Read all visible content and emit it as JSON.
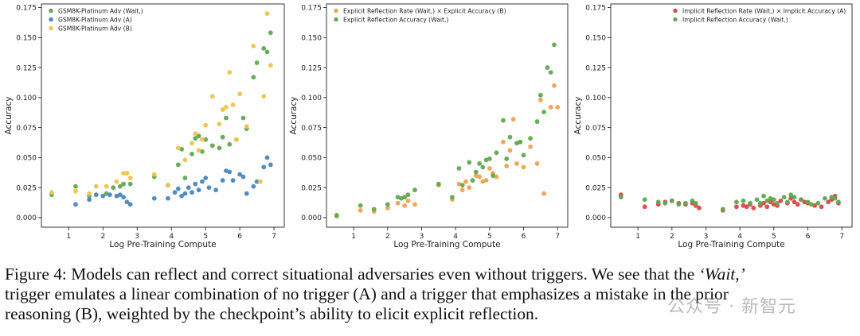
{
  "chart_data": [
    {
      "type": "scatter",
      "xlabel": "Log Pre-Training Compute",
      "ylabel": "Accuracy",
      "xlim": [
        0.2,
        7.3
      ],
      "ylim": [
        -0.008,
        0.178
      ],
      "xticks": [
        1,
        2,
        3,
        4,
        5,
        6,
        7
      ],
      "yticks": [
        0.0,
        0.025,
        0.05,
        0.075,
        0.1,
        0.125,
        0.15,
        0.175
      ],
      "legend_position": "top-left",
      "series": [
        {
          "name": "GSM8K-Platinum Adv (Wait,)",
          "color": "#5fa84f",
          "points": [
            [
              0.5,
              0.019
            ],
            [
              1.2,
              0.026
            ],
            [
              1.6,
              0.018
            ],
            [
              2.1,
              0.02
            ],
            [
              2.3,
              0.025
            ],
            [
              2.5,
              0.026
            ],
            [
              2.6,
              0.028
            ],
            [
              2.8,
              0.028
            ],
            [
              3.5,
              0.034
            ],
            [
              3.9,
              0.027
            ],
            [
              4.2,
              0.044
            ],
            [
              4.3,
              0.057
            ],
            [
              4.4,
              0.033
            ],
            [
              4.6,
              0.053
            ],
            [
              4.7,
              0.066
            ],
            [
              4.8,
              0.068
            ],
            [
              4.9,
              0.055
            ],
            [
              5.0,
              0.065
            ],
            [
              5.2,
              0.06
            ],
            [
              5.4,
              0.058
            ],
            [
              5.5,
              0.067
            ],
            [
              5.6,
              0.083
            ],
            [
              5.7,
              0.061
            ],
            [
              5.9,
              0.065
            ],
            [
              6.1,
              0.083
            ],
            [
              6.2,
              0.074
            ],
            [
              6.4,
              0.117
            ],
            [
              6.5,
              0.129
            ],
            [
              6.7,
              0.141
            ],
            [
              6.8,
              0.138
            ],
            [
              6.9,
              0.154
            ]
          ]
        },
        {
          "name": "GSM8K-Platinum Adv (A)",
          "color": "#4a86c0",
          "points": [
            [
              1.2,
              0.011
            ],
            [
              1.6,
              0.015
            ],
            [
              1.8,
              0.019
            ],
            [
              2.0,
              0.018
            ],
            [
              2.2,
              0.019
            ],
            [
              2.4,
              0.018
            ],
            [
              2.5,
              0.019
            ],
            [
              2.6,
              0.017
            ],
            [
              2.7,
              0.013
            ],
            [
              2.8,
              0.011
            ],
            [
              3.5,
              0.016
            ],
            [
              3.9,
              0.016
            ],
            [
              4.1,
              0.021
            ],
            [
              4.2,
              0.024
            ],
            [
              4.3,
              0.018
            ],
            [
              4.4,
              0.02
            ],
            [
              4.5,
              0.025
            ],
            [
              4.6,
              0.021
            ],
            [
              4.7,
              0.028
            ],
            [
              4.8,
              0.023
            ],
            [
              4.9,
              0.03
            ],
            [
              5.0,
              0.033
            ],
            [
              5.1,
              0.025
            ],
            [
              5.3,
              0.023
            ],
            [
              5.5,
              0.031
            ],
            [
              5.6,
              0.039
            ],
            [
              5.7,
              0.038
            ],
            [
              5.8,
              0.031
            ],
            [
              6.0,
              0.036
            ],
            [
              6.1,
              0.034
            ],
            [
              6.2,
              0.02
            ],
            [
              6.4,
              0.026
            ],
            [
              6.5,
              0.03
            ],
            [
              6.7,
              0.042
            ],
            [
              6.8,
              0.05
            ],
            [
              6.9,
              0.044
            ]
          ]
        },
        {
          "name": "GSM8K-Platinum Adv (B)",
          "color": "#f0c24a",
          "points": [
            [
              0.5,
              0.021
            ],
            [
              1.2,
              0.022
            ],
            [
              1.6,
              0.02
            ],
            [
              1.8,
              0.026
            ],
            [
              2.1,
              0.026
            ],
            [
              2.4,
              0.03
            ],
            [
              2.6,
              0.037
            ],
            [
              2.7,
              0.037
            ],
            [
              2.8,
              0.033
            ],
            [
              3.5,
              0.036
            ],
            [
              3.9,
              0.027
            ],
            [
              4.2,
              0.058
            ],
            [
              4.4,
              0.048
            ],
            [
              4.6,
              0.062
            ],
            [
              4.7,
              0.07
            ],
            [
              4.8,
              0.056
            ],
            [
              4.9,
              0.065
            ],
            [
              5.0,
              0.077
            ],
            [
              5.2,
              0.101
            ],
            [
              5.4,
              0.078
            ],
            [
              5.5,
              0.09
            ],
            [
              5.6,
              0.092
            ],
            [
              5.7,
              0.121
            ],
            [
              5.8,
              0.094
            ],
            [
              5.9,
              0.065
            ],
            [
              6.0,
              0.103
            ],
            [
              6.2,
              0.076
            ],
            [
              6.4,
              0.143
            ],
            [
              6.6,
              0.03
            ],
            [
              6.7,
              0.101
            ],
            [
              6.8,
              0.17
            ],
            [
              6.9,
              0.127
            ]
          ]
        }
      ]
    },
    {
      "type": "scatter",
      "xlabel": "Log Pre-Training Compute",
      "ylabel": "Accuracy",
      "xlim": [
        0.2,
        7.3
      ],
      "ylim": [
        -0.008,
        0.178
      ],
      "xticks": [
        1,
        2,
        3,
        4,
        5,
        6,
        7
      ],
      "yticks": [
        0.0,
        0.025,
        0.05,
        0.075,
        0.1,
        0.125,
        0.15,
        0.175
      ],
      "legend_position": "top-left",
      "series": [
        {
          "name": "Explicit Reflection Rate (Wait,) × Explicit Accuracy (B)",
          "color": "#f0a14f",
          "points": [
            [
              0.5,
              0.001
            ],
            [
              1.2,
              0.006
            ],
            [
              1.6,
              0.005
            ],
            [
              2.0,
              0.008
            ],
            [
              2.3,
              0.012
            ],
            [
              2.5,
              0.01
            ],
            [
              2.6,
              0.014
            ],
            [
              2.8,
              0.011
            ],
            [
              3.5,
              0.027
            ],
            [
              3.9,
              0.015
            ],
            [
              4.1,
              0.028
            ],
            [
              4.2,
              0.023
            ],
            [
              4.3,
              0.03
            ],
            [
              4.4,
              0.025
            ],
            [
              4.6,
              0.035
            ],
            [
              4.7,
              0.034
            ],
            [
              4.8,
              0.03
            ],
            [
              4.9,
              0.031
            ],
            [
              5.0,
              0.041
            ],
            [
              5.1,
              0.037
            ],
            [
              5.2,
              0.034
            ],
            [
              5.4,
              0.063
            ],
            [
              5.5,
              0.043
            ],
            [
              5.6,
              0.056
            ],
            [
              5.7,
              0.082
            ],
            [
              5.8,
              0.045
            ],
            [
              5.9,
              0.063
            ],
            [
              6.0,
              0.042
            ],
            [
              6.2,
              0.059
            ],
            [
              6.4,
              0.045
            ],
            [
              6.5,
              0.098
            ],
            [
              6.6,
              0.02
            ],
            [
              6.8,
              0.092
            ],
            [
              6.9,
              0.11
            ],
            [
              7.0,
              0.092
            ]
          ]
        },
        {
          "name": "Explicit Reflection Accuracy (Wait,)",
          "color": "#5fa84f",
          "points": [
            [
              0.5,
              0.002
            ],
            [
              1.2,
              0.01
            ],
            [
              1.6,
              0.007
            ],
            [
              2.0,
              0.011
            ],
            [
              2.3,
              0.017
            ],
            [
              2.4,
              0.016
            ],
            [
              2.5,
              0.017
            ],
            [
              2.6,
              0.019
            ],
            [
              2.8,
              0.023
            ],
            [
              3.5,
              0.028
            ],
            [
              3.9,
              0.017
            ],
            [
              4.1,
              0.041
            ],
            [
              4.2,
              0.027
            ],
            [
              4.4,
              0.046
            ],
            [
              4.5,
              0.031
            ],
            [
              4.6,
              0.038
            ],
            [
              4.7,
              0.045
            ],
            [
              4.8,
              0.042
            ],
            [
              4.9,
              0.048
            ],
            [
              5.0,
              0.049
            ],
            [
              5.1,
              0.035
            ],
            [
              5.2,
              0.054
            ],
            [
              5.4,
              0.081
            ],
            [
              5.5,
              0.049
            ],
            [
              5.6,
              0.067
            ],
            [
              5.8,
              0.062
            ],
            [
              5.9,
              0.063
            ],
            [
              6.0,
              0.052
            ],
            [
              6.2,
              0.066
            ],
            [
              6.4,
              0.08
            ],
            [
              6.5,
              0.102
            ],
            [
              6.6,
              0.088
            ],
            [
              6.7,
              0.125
            ],
            [
              6.8,
              0.121
            ],
            [
              6.9,
              0.144
            ]
          ]
        }
      ]
    },
    {
      "type": "scatter",
      "xlabel": "Log Pre-Training Compute",
      "ylabel": "Accuracy",
      "xlim": [
        0.2,
        7.3
      ],
      "ylim": [
        -0.008,
        0.178
      ],
      "xticks": [
        1,
        2,
        3,
        4,
        5,
        6,
        7
      ],
      "yticks": [
        0.0,
        0.025,
        0.05,
        0.075,
        0.1,
        0.125,
        0.15,
        0.175
      ],
      "legend_position": "top-right",
      "series": [
        {
          "name": "Implicit Reflection Rate (Wait,) × Implicit Accuracy (A)",
          "color": "#d9474a",
          "points": [
            [
              0.5,
              0.019
            ],
            [
              1.2,
              0.009
            ],
            [
              1.6,
              0.011
            ],
            [
              1.8,
              0.013
            ],
            [
              2.0,
              0.014
            ],
            [
              2.2,
              0.012
            ],
            [
              2.4,
              0.011
            ],
            [
              2.6,
              0.012
            ],
            [
              2.7,
              0.01
            ],
            [
              2.8,
              0.008
            ],
            [
              3.5,
              0.006
            ],
            [
              3.9,
              0.009
            ],
            [
              4.1,
              0.01
            ],
            [
              4.2,
              0.009
            ],
            [
              4.3,
              0.011
            ],
            [
              4.4,
              0.008
            ],
            [
              4.6,
              0.01
            ],
            [
              4.7,
              0.012
            ],
            [
              4.8,
              0.009
            ],
            [
              4.9,
              0.013
            ],
            [
              5.0,
              0.011
            ],
            [
              5.1,
              0.01
            ],
            [
              5.2,
              0.014
            ],
            [
              5.4,
              0.012
            ],
            [
              5.5,
              0.016
            ],
            [
              5.6,
              0.013
            ],
            [
              5.7,
              0.011
            ],
            [
              5.8,
              0.015
            ],
            [
              5.9,
              0.013
            ],
            [
              6.0,
              0.012
            ],
            [
              6.2,
              0.01
            ],
            [
              6.4,
              0.009
            ],
            [
              6.6,
              0.013
            ],
            [
              6.7,
              0.015
            ],
            [
              6.8,
              0.018
            ],
            [
              6.9,
              0.012
            ]
          ]
        },
        {
          "name": "Implicit Reflection Accuracy (Wait,)",
          "color": "#5fa84f",
          "points": [
            [
              0.5,
              0.017
            ],
            [
              1.2,
              0.015
            ],
            [
              1.6,
              0.013
            ],
            [
              1.8,
              0.012
            ],
            [
              2.0,
              0.014
            ],
            [
              2.2,
              0.011
            ],
            [
              2.4,
              0.012
            ],
            [
              2.6,
              0.014
            ],
            [
              2.7,
              0.012
            ],
            [
              3.5,
              0.007
            ],
            [
              3.9,
              0.013
            ],
            [
              4.1,
              0.014
            ],
            [
              4.3,
              0.012
            ],
            [
              4.5,
              0.015
            ],
            [
              4.6,
              0.012
            ],
            [
              4.7,
              0.018
            ],
            [
              4.8,
              0.014
            ],
            [
              4.9,
              0.016
            ],
            [
              5.0,
              0.015
            ],
            [
              5.1,
              0.012
            ],
            [
              5.3,
              0.017
            ],
            [
              5.4,
              0.013
            ],
            [
              5.5,
              0.019
            ],
            [
              5.6,
              0.017
            ],
            [
              5.8,
              0.015
            ],
            [
              6.0,
              0.013
            ],
            [
              6.1,
              0.011
            ],
            [
              6.3,
              0.012
            ],
            [
              6.5,
              0.016
            ],
            [
              6.7,
              0.017
            ],
            [
              6.8,
              0.016
            ],
            [
              6.9,
              0.013
            ]
          ]
        }
      ]
    }
  ],
  "caption": {
    "label": "Figure 4:",
    "line1": "Models can reflect and correct situational adversaries even without triggers. We see that the",
    "trigger_word": "‘Wait,’",
    "line2a": "trigger emulates a linear combination of no trigger",
    "var_a": "(A)",
    "line2b": "and a trigger that emphasizes a mistake in the prior",
    "line3a": "reasoning",
    "var_b": "(B)",
    "line3b": ", weighted by the checkpoint’s ability to elicit explicit reflection."
  },
  "watermark": "公众号 · 新智元"
}
